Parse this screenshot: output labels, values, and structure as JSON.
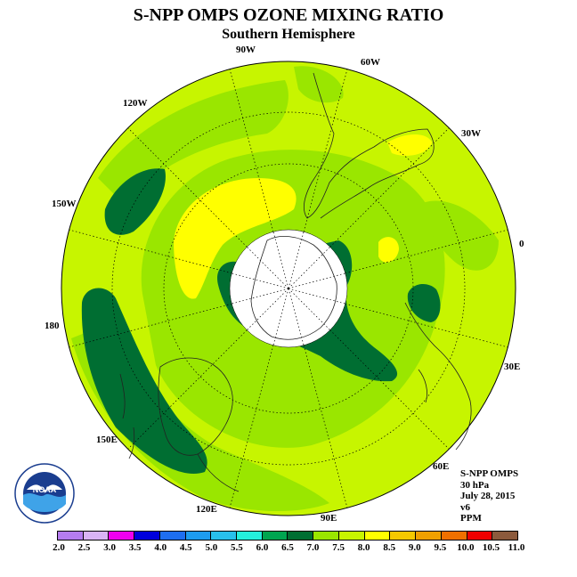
{
  "title": "S-NPP OMPS OZONE MIXING RATIO",
  "subtitle": "Southern Hemisphere",
  "longitude_labels": {
    "w90": "90W",
    "w60": "60W",
    "w30": "30W",
    "zero": "0",
    "e30": "30E",
    "e60": "60E",
    "e90": "90E",
    "e120": "120E",
    "e150": "150E",
    "lon180": "180",
    "w150": "150W",
    "w120": "120W"
  },
  "info": {
    "line1": "S-NPP OMPS",
    "line2": "30 hPa",
    "line3": "July 28, 2015",
    "line4": "v6",
    "line5": "PPM"
  },
  "logo_text": "NOAA",
  "colorbar": {
    "colors": [
      "#b57cf0",
      "#d9b4f5",
      "#f000f0",
      "#0000dc",
      "#1e6ef0",
      "#1e9cf0",
      "#28c0ec",
      "#24f0dc",
      "#00a550",
      "#006e32",
      "#9ae600",
      "#c7f500",
      "#ffff00",
      "#f5c800",
      "#f0a000",
      "#f07000",
      "#f00000",
      "#8c5a3c"
    ],
    "ticks": [
      "2.0",
      "2.5",
      "3.0",
      "3.5",
      "4.0",
      "4.5",
      "5.0",
      "5.5",
      "6.0",
      "6.5",
      "7.0",
      "7.5",
      "8.0",
      "8.5",
      "9.0",
      "9.5",
      "10.0",
      "10.5",
      "11.0"
    ]
  },
  "map_colors": {
    "c70": "#c7f500",
    "c75": "#9ae600",
    "c65": "#006e32",
    "c80": "#ffff00",
    "hole": "#ffffff"
  }
}
